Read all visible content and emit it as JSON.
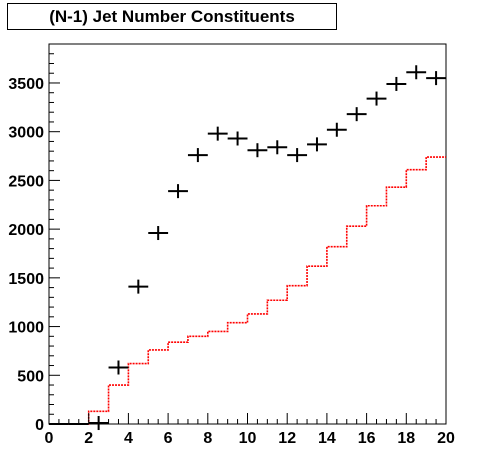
{
  "chart_data": {
    "type": "scatter",
    "title": "(N-1) Jet Number Constituents",
    "xlabel": "",
    "ylabel": "",
    "xlim": [
      0,
      20
    ],
    "ylim": [
      0,
      3900
    ],
    "x_ticks": [
      0,
      2,
      4,
      6,
      8,
      10,
      12,
      14,
      16,
      18,
      20
    ],
    "y_ticks": [
      0,
      500,
      1000,
      1500,
      2000,
      2500,
      3000,
      3500
    ],
    "grid": false,
    "legend": "none",
    "bin_edges": [
      0,
      1,
      2,
      3,
      4,
      5,
      6,
      7,
      8,
      9,
      10,
      11,
      12,
      13,
      14,
      15,
      16,
      17,
      18,
      19,
      20
    ],
    "series": [
      {
        "style": "crosses",
        "color": "#000000",
        "values": [
          0,
          0,
          10,
          580,
          1410,
          1960,
          2390,
          2760,
          2980,
          2930,
          2810,
          2840,
          2760,
          2870,
          3020,
          3180,
          3340,
          3490,
          3610,
          3550
        ]
      },
      {
        "style": "step",
        "color": "#ff0000",
        "values": [
          0,
          0,
          130,
          400,
          620,
          760,
          840,
          900,
          950,
          1040,
          1130,
          1270,
          1420,
          1620,
          1820,
          2030,
          2240,
          2430,
          2610,
          2740
        ]
      }
    ]
  }
}
